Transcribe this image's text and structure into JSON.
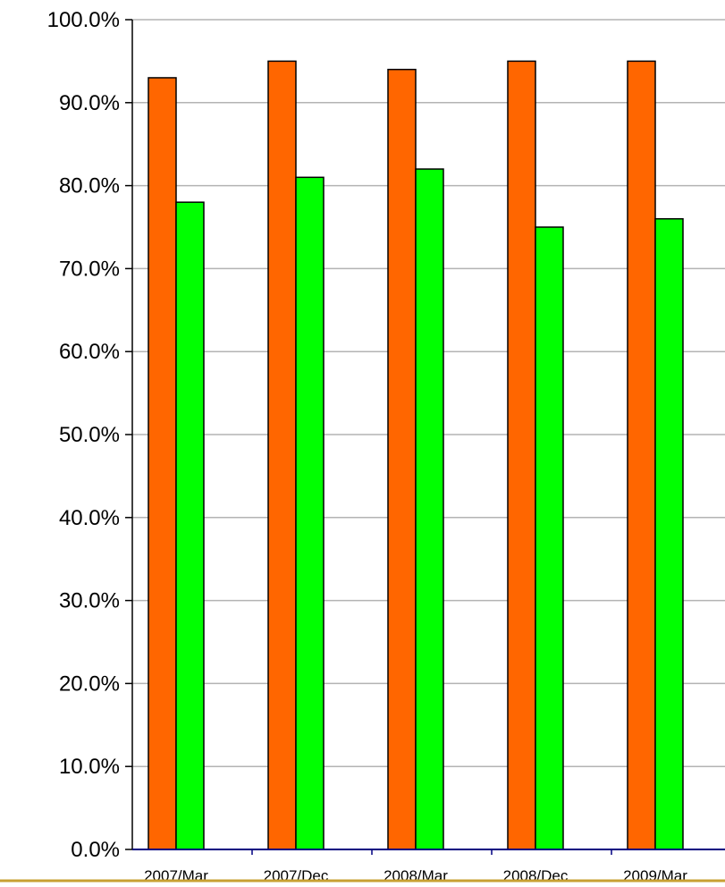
{
  "chart_data": {
    "type": "bar",
    "categories": [
      "2007/Mar",
      "2007/Dec",
      "2008/Mar",
      "2008/Dec",
      "2009/Mar"
    ],
    "series": [
      {
        "values": [
          93.0,
          95.0,
          94.0,
          95.0,
          95.0
        ],
        "color": "#ff6600"
      },
      {
        "values": [
          78.0,
          81.0,
          82.0,
          75.0,
          76.0
        ],
        "color": "#00ff00"
      }
    ],
    "y_ticks": [
      "0.0%",
      "10.0%",
      "20.0%",
      "30.0%",
      "40.0%",
      "50.0%",
      "60.0%",
      "70.0%",
      "80.0%",
      "90.0%",
      "100.0%"
    ],
    "ylim": [
      0,
      100
    ],
    "grid": true,
    "legend": "none",
    "colors": {
      "gridline": "#b3b3b3",
      "x_axis": "#000080",
      "y_axis": "#000000",
      "bar_outline": "#000000",
      "footer_rule": "#c8a032"
    }
  }
}
